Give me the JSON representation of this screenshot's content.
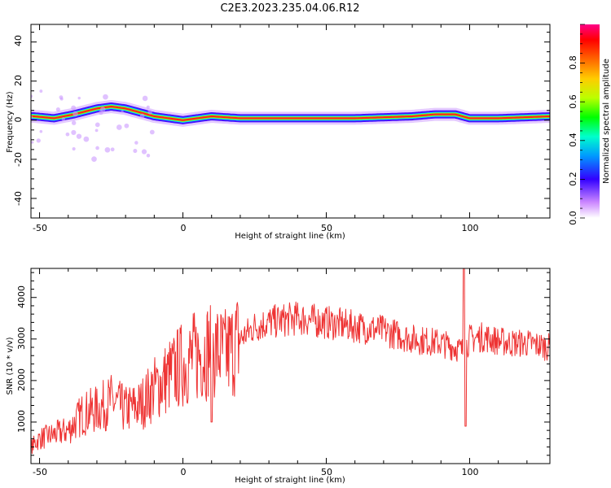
{
  "figure": {
    "title": "C2E3.2023.235.04.06.R12"
  },
  "chart_data": [
    {
      "type": "heatmap",
      "xlabel": "Height of straight line (km)",
      "ylabel": "Frequency (Hz)",
      "xlim": [
        -53,
        128
      ],
      "ylim": [
        -50,
        49
      ],
      "xticks": [
        "-50",
        "0",
        "50",
        "100"
      ],
      "yticks": [
        "40",
        "20",
        "0",
        "-20",
        "-40"
      ],
      "ridge_frequency_hz": {
        "x": [
          -52,
          -45,
          -38,
          -30,
          -25,
          -20,
          -15,
          -10,
          -5,
          0,
          5,
          10,
          20,
          40,
          60,
          80,
          88,
          95,
          100,
          110,
          128
        ],
        "y": [
          2,
          1,
          3,
          6,
          7,
          6,
          4,
          2,
          1,
          0,
          1,
          2,
          1,
          1,
          1,
          2,
          3,
          3,
          1,
          1,
          2
        ]
      },
      "colorbar": {
        "label": "Normalized spectral amplitude",
        "ticks": [
          "0.0",
          "0.2",
          "0.4",
          "0.6",
          "0.8"
        ],
        "range": [
          0,
          1
        ]
      }
    },
    {
      "type": "line",
      "xlabel": "Height of straight line (km)",
      "ylabel": "SNR (10 * v/v)",
      "xlim": [
        -53,
        128
      ],
      "ylim": [
        0,
        4700
      ],
      "xticks": [
        "-50",
        "0",
        "50",
        "100"
      ],
      "yticks": [
        "1000",
        "2000",
        "3000",
        "4000"
      ],
      "series": [
        {
          "color": "#ee3333",
          "x": [
            -53,
            -50,
            -45,
            -40,
            -35,
            -30,
            -25,
            -20,
            -15,
            -10,
            -5,
            0,
            5,
            10,
            15,
            20,
            25,
            30,
            35,
            40,
            50,
            60,
            70,
            80,
            90,
            95,
            98,
            100,
            105,
            110,
            115,
            120,
            128
          ],
          "y": [
            400,
            600,
            700,
            800,
            1200,
            1300,
            1500,
            1300,
            1400,
            1800,
            2100,
            2400,
            2600,
            2800,
            2600,
            3000,
            3300,
            3400,
            3450,
            3500,
            3400,
            3300,
            3200,
            3000,
            2900,
            2800,
            2700,
            3000,
            3050,
            2950,
            2900,
            2900,
            2800
          ]
        }
      ]
    }
  ]
}
